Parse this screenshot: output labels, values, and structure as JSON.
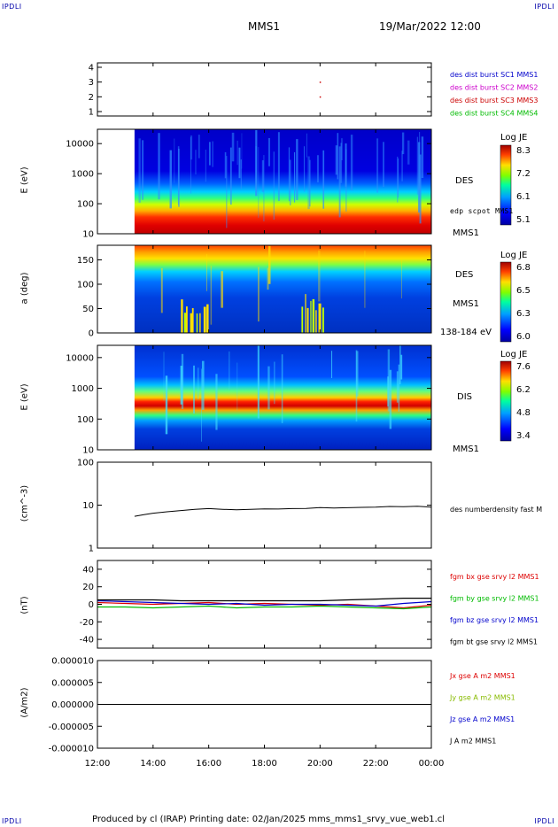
{
  "corners": {
    "tl": "IPDLI",
    "tr": "IPDLI",
    "bl": "IPDLI",
    "br": "IPDLI"
  },
  "header": {
    "spacecraft": "MMS1",
    "datetime": "19/Mar/2022 12:00"
  },
  "footer": {
    "text": "Produced by cl (IRAP)   Printing date: 02/Jan/2025   mms_mms1_srvy_vue_web1.cl"
  },
  "panels": {
    "p1": {
      "legend": [
        {
          "text": "des dist burst SC1 MMS1",
          "color": "#0000cc"
        },
        {
          "text": "des dist burst SC2 MMS2",
          "color": "#cc00cc"
        },
        {
          "text": "des dist burst SC3 MMS3",
          "color": "#cc0000"
        },
        {
          "text": "des dist burst SC4 MMS4",
          "color": "#00bb00"
        }
      ]
    },
    "p2": {
      "ylabel": "E (eV)",
      "instrument": "DES",
      "sublabel": "edp scpot MMS1",
      "spacecraft": "MMS1",
      "cb_title": "Log JE",
      "cb_ticks": [
        "8.3",
        "7.2",
        "6.1",
        "5.1"
      ]
    },
    "p3": {
      "ylabel": "a (deg)",
      "instrument": "DES",
      "spacecraft": "MMS1",
      "energy_range": "138-184 eV",
      "cb_title": "Log JE",
      "cb_ticks": [
        "6.8",
        "6.5",
        "6.3",
        "6.0"
      ]
    },
    "p4": {
      "ylabel": "E (eV)",
      "instrument": "DIS",
      "spacecraft": "MMS1",
      "cb_title": "Log JE",
      "cb_ticks": [
        "7.6",
        "6.2",
        "4.8",
        "3.4"
      ]
    },
    "p5": {
      "ylabel": "(cm^-3)",
      "legend": [
        {
          "text": "des numberdensity fast M",
          "color": "#000000"
        }
      ]
    },
    "p6": {
      "ylabel": "(nT)",
      "legend": [
        {
          "text": "fgm bx gse srvy l2 MMS1",
          "color": "#dd0000"
        },
        {
          "text": "fgm by gse srvy l2 MMS1",
          "color": "#00bb00"
        },
        {
          "text": "fgm bz gse srvy l2 MMS1",
          "color": "#0000cc"
        },
        {
          "text": "fgm bt gse srvy l2 MMS1",
          "color": "#000000"
        }
      ]
    },
    "p7": {
      "ylabel": "(A/m2)",
      "legend": [
        {
          "text": "Jx gse A m2 MMS1",
          "color": "#dd0000"
        },
        {
          "text": "Jy gse A m2 MMS1",
          "color": "#88bb00"
        },
        {
          "text": "Jz gse A m2 MMS1",
          "color": "#0000cc"
        },
        {
          "text": "J A m2 MMS1",
          "color": "#000000"
        }
      ]
    }
  },
  "chart_data": [
    {
      "type": "scatter",
      "panel": "p1",
      "yticks": [
        "1",
        "2",
        "3",
        "4"
      ],
      "ylim": [
        0.7,
        4.3
      ],
      "points": [
        {
          "x": "20:00",
          "y": 3
        },
        {
          "x": "20:00",
          "y": 2
        }
      ]
    },
    {
      "type": "heatmap",
      "panel": "p2",
      "ylabel": "E (eV)",
      "yscale": "log",
      "yticks": [
        "10",
        "100",
        "1000",
        "10000"
      ],
      "ylim": [
        10,
        30000
      ],
      "data_start": "13:20",
      "colorbar": {
        "title": "Log JE",
        "range": [
          5.1,
          8.3
        ]
      }
    },
    {
      "type": "heatmap",
      "panel": "p3",
      "ylabel": "a (deg)",
      "yticks": [
        "0",
        "50",
        "100",
        "150"
      ],
      "ylim": [
        0,
        180
      ],
      "data_start": "13:20",
      "colorbar": {
        "title": "Log JE",
        "range": [
          6.0,
          6.8
        ]
      }
    },
    {
      "type": "heatmap",
      "panel": "p4",
      "ylabel": "E (eV)",
      "yscale": "log",
      "yticks": [
        "10",
        "100",
        "1000",
        "10000"
      ],
      "ylim": [
        10,
        25000
      ],
      "data_start": "13:20",
      "colorbar": {
        "title": "Log JE",
        "range": [
          3.4,
          7.6
        ]
      }
    },
    {
      "type": "line",
      "panel": "p5",
      "ylabel": "(cm^-3)",
      "yscale": "log",
      "yticks": [
        "1",
        "10",
        "100"
      ],
      "ylim": [
        1,
        100
      ],
      "series": [
        {
          "name": "des numberdensity fast M",
          "x": [
            "13:20",
            "13:40",
            "14:00",
            "14:30",
            "15:00",
            "15:30",
            "16:00",
            "16:30",
            "17:00",
            "17:30",
            "18:00",
            "18:30",
            "19:00",
            "19:30",
            "20:00",
            "20:30",
            "21:00",
            "21:30",
            "22:00",
            "22:30",
            "23:00",
            "23:30",
            "00:00"
          ],
          "y": [
            5.5,
            6.0,
            6.5,
            7.0,
            7.5,
            8.0,
            8.3,
            8.0,
            7.8,
            8.0,
            8.2,
            8.1,
            8.3,
            8.4,
            8.8,
            8.6,
            8.7,
            8.9,
            9.0,
            9.3,
            9.2,
            9.4,
            9.0
          ]
        }
      ]
    },
    {
      "type": "line",
      "panel": "p6",
      "ylabel": "(nT)",
      "yticks": [
        "-40",
        "-20",
        "0",
        "20",
        "40"
      ],
      "ylim": [
        -50,
        50
      ],
      "series": [
        {
          "name": "fgm bx gse srvy l2 MMS1",
          "x": [
            "12:00",
            "13:00",
            "14:00",
            "15:00",
            "16:00",
            "17:00",
            "18:00",
            "19:00",
            "20:00",
            "21:00",
            "22:00",
            "23:00",
            "00:00"
          ],
          "y": [
            2,
            1,
            0,
            1,
            2,
            0,
            1,
            0,
            -1,
            0,
            -2,
            -4,
            -1
          ]
        },
        {
          "name": "fgm by gse srvy l2 MMS1",
          "x": [
            "12:00",
            "13:00",
            "14:00",
            "15:00",
            "16:00",
            "17:00",
            "18:00",
            "19:00",
            "20:00",
            "21:00",
            "22:00",
            "23:00",
            "00:00"
          ],
          "y": [
            -3,
            -3,
            -4,
            -3,
            -2,
            -4,
            -3,
            -3,
            -2,
            -3,
            -4,
            -5,
            -3
          ]
        },
        {
          "name": "fgm bz gse srvy l2 MMS1",
          "x": [
            "12:00",
            "13:00",
            "14:00",
            "15:00",
            "16:00",
            "17:00",
            "18:00",
            "19:00",
            "20:00",
            "21:00",
            "22:00",
            "23:00",
            "00:00"
          ],
          "y": [
            4,
            3,
            2,
            1,
            0,
            1,
            -1,
            0,
            0,
            -1,
            -2,
            1,
            3
          ]
        },
        {
          "name": "fgm bt gse srvy l2 MMS1",
          "x": [
            "12:00",
            "13:00",
            "14:00",
            "15:00",
            "16:00",
            "17:00",
            "18:00",
            "19:00",
            "20:00",
            "21:00",
            "22:00",
            "23:00",
            "00:00"
          ],
          "y": [
            5,
            5,
            5,
            4,
            4,
            4,
            4,
            4,
            4,
            5,
            6,
            7,
            7
          ]
        }
      ]
    },
    {
      "type": "line",
      "panel": "p7",
      "ylabel": "(A/m2)",
      "yticks": [
        "0.000010",
        "0.000005",
        "0.000000",
        "-0.000005",
        "-0.000010"
      ],
      "ylim": [
        -1e-05,
        1e-05
      ],
      "series": [
        {
          "name": "J A m2 MMS1",
          "x": [
            "12:00",
            "18:00",
            "00:00"
          ],
          "y": [
            0,
            0,
            0
          ]
        }
      ]
    }
  ],
  "xaxis": {
    "ticks": [
      "12:00",
      "14:00",
      "16:00",
      "18:00",
      "20:00",
      "22:00",
      "00:00"
    ]
  }
}
